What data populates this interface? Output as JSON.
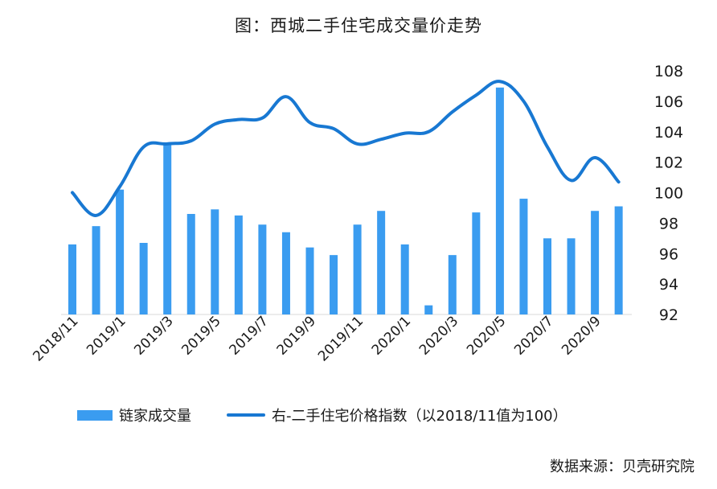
{
  "title": "图：西城二手住宅成交量价走势",
  "source": "数据来源：贝壳研究院",
  "legend": {
    "bar_label": "链家成交量",
    "line_label": "右-二手住宅价格指数（以2018/11值为100）"
  },
  "colors": {
    "bar": "#3a9cf0",
    "line": "#1878d2"
  },
  "chart_data": {
    "type": "bar+line",
    "title": "图：西城二手住宅成交量价走势",
    "x": [
      "2018/11",
      "2018/12",
      "2019/1",
      "2019/2",
      "2019/3",
      "2019/4",
      "2019/5",
      "2019/6",
      "2019/7",
      "2019/8",
      "2019/9",
      "2019/10",
      "2019/11",
      "2019/12",
      "2020/1",
      "2020/2",
      "2020/3",
      "2020/4",
      "2020/5",
      "2020/6",
      "2020/7",
      "2020/8",
      "2020/9",
      "2020/10"
    ],
    "xtick_labels": [
      "2018/11",
      "2019/1",
      "2019/3",
      "2019/5",
      "2019/7",
      "2019/9",
      "2019/11",
      "2020/1",
      "2020/3",
      "2020/5",
      "2020/7",
      "2020/9"
    ],
    "bar_series": {
      "name": "链家成交量",
      "values": [
        96.6,
        97.8,
        100.2,
        96.7,
        103.2,
        98.6,
        98.9,
        98.5,
        97.9,
        97.4,
        96.4,
        95.9,
        97.9,
        98.8,
        96.6,
        92.6,
        95.9,
        98.7,
        106.9,
        99.6,
        97.0,
        97.0,
        98.8,
        99.1
      ]
    },
    "line_series": {
      "name": "右-二手住宅价格指数（以2018/11值为100）",
      "values": [
        100.0,
        98.5,
        100.4,
        103.0,
        103.2,
        103.4,
        104.5,
        104.8,
        104.9,
        106.3,
        104.6,
        104.2,
        103.2,
        103.5,
        103.9,
        104.0,
        105.3,
        106.4,
        107.3,
        106.0,
        103.0,
        100.8,
        102.3,
        100.7
      ]
    },
    "y_right": {
      "min": 92,
      "max": 108,
      "ticks": [
        "92",
        "94",
        "96",
        "98",
        "100",
        "102",
        "104",
        "106",
        "108"
      ]
    }
  }
}
